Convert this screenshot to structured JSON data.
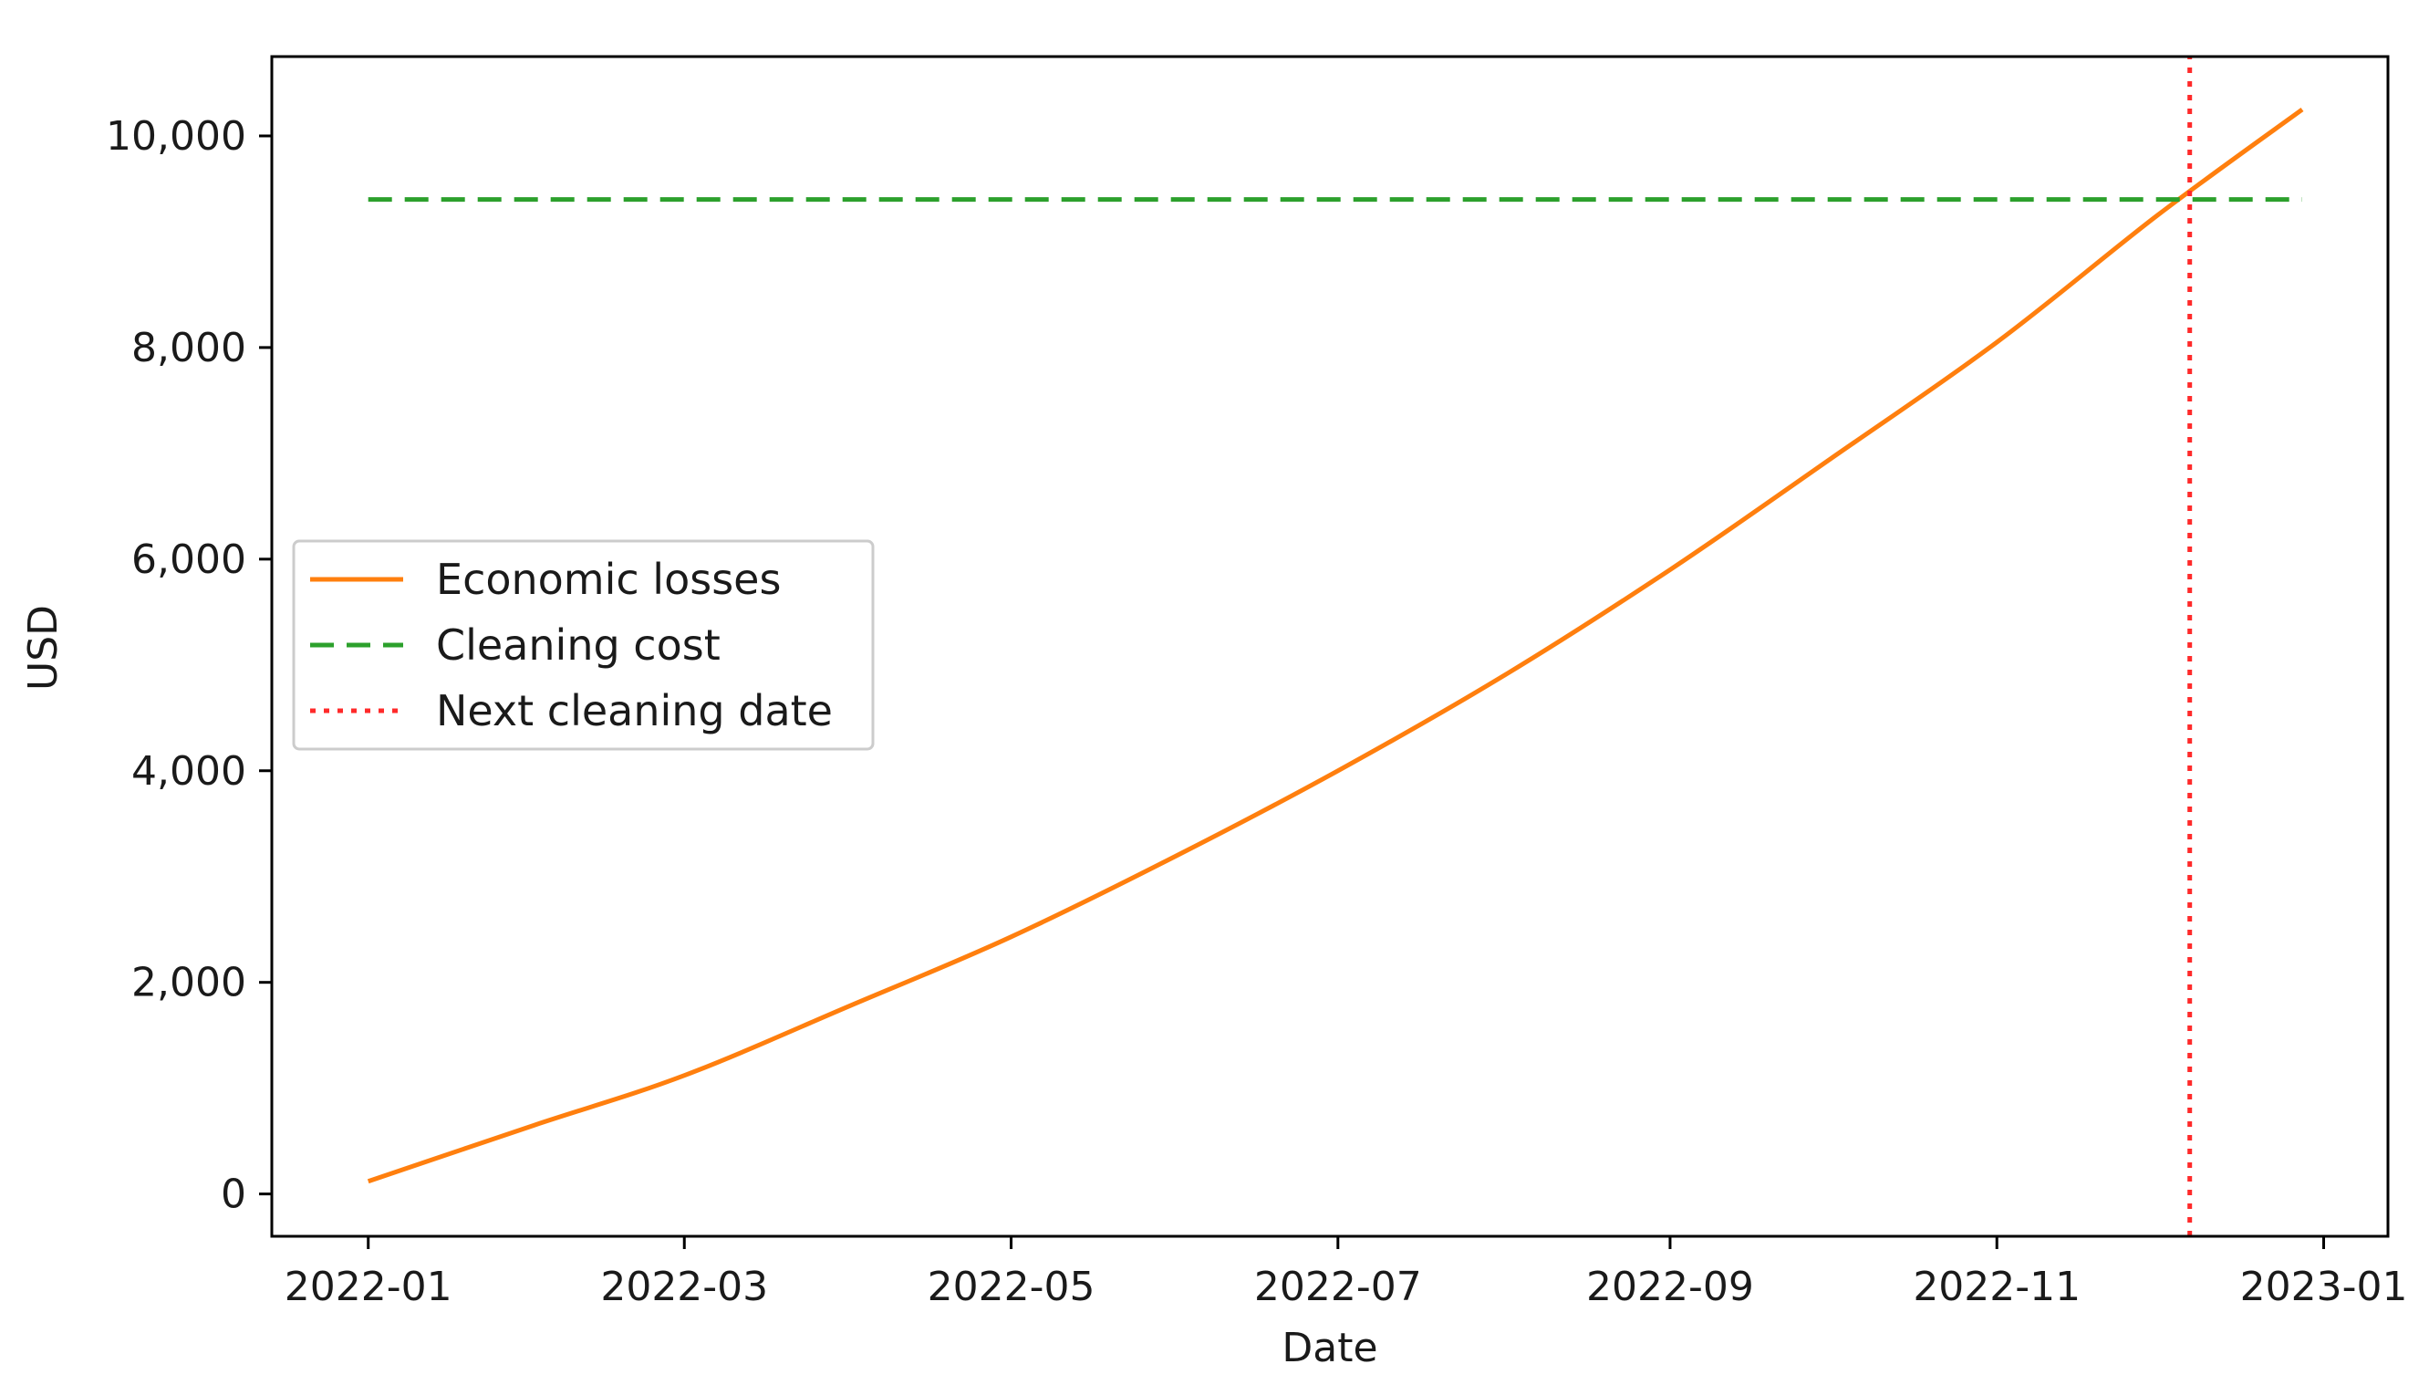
{
  "chart_data": {
    "type": "line",
    "xlabel": "Date",
    "ylabel": "USD",
    "xlim": [
      "2021-12-14",
      "2023-01-13"
    ],
    "ylim": [
      -400,
      10750
    ],
    "x_ticks": [
      "2022-01-01",
      "2022-03-01",
      "2022-05-01",
      "2022-07-01",
      "2022-09-01",
      "2022-11-01",
      "2023-01-01"
    ],
    "x_tick_labels": [
      "2022-01",
      "2022-03",
      "2022-05",
      "2022-07",
      "2022-09",
      "2022-11",
      "2023-01"
    ],
    "y_ticks": [
      0,
      2000,
      4000,
      6000,
      8000,
      10000
    ],
    "y_tick_labels": [
      "0",
      "2,000",
      "4,000",
      "6,000",
      "8,000",
      "10,000"
    ],
    "grid": false,
    "legend_position": "center-left",
    "series": [
      {
        "name": "Economic losses",
        "style": "solid",
        "color": "#ff7f0e",
        "x": [
          "2022-01-01",
          "2022-02-01",
          "2022-03-01",
          "2022-04-01",
          "2022-05-01",
          "2022-06-01",
          "2022-07-01",
          "2022-08-01",
          "2022-09-01",
          "2022-10-01",
          "2022-11-01",
          "2022-12-01",
          "2022-12-28"
        ],
        "y": [
          120,
          650,
          1120,
          1780,
          2430,
          3200,
          4000,
          4900,
          5900,
          6950,
          8050,
          9250,
          10250
        ]
      },
      {
        "name": "Cleaning cost",
        "style": "dashed",
        "color": "#2ca02c",
        "x": [
          "2022-01-01",
          "2022-12-28"
        ],
        "y": [
          9400,
          9400
        ]
      },
      {
        "name": "Next cleaning date",
        "style": "dotted",
        "color": "#ff2a2a",
        "orientation": "vertical",
        "x": [
          "2022-12-07",
          "2022-12-07"
        ],
        "y": [
          -400,
          10750
        ]
      }
    ]
  }
}
